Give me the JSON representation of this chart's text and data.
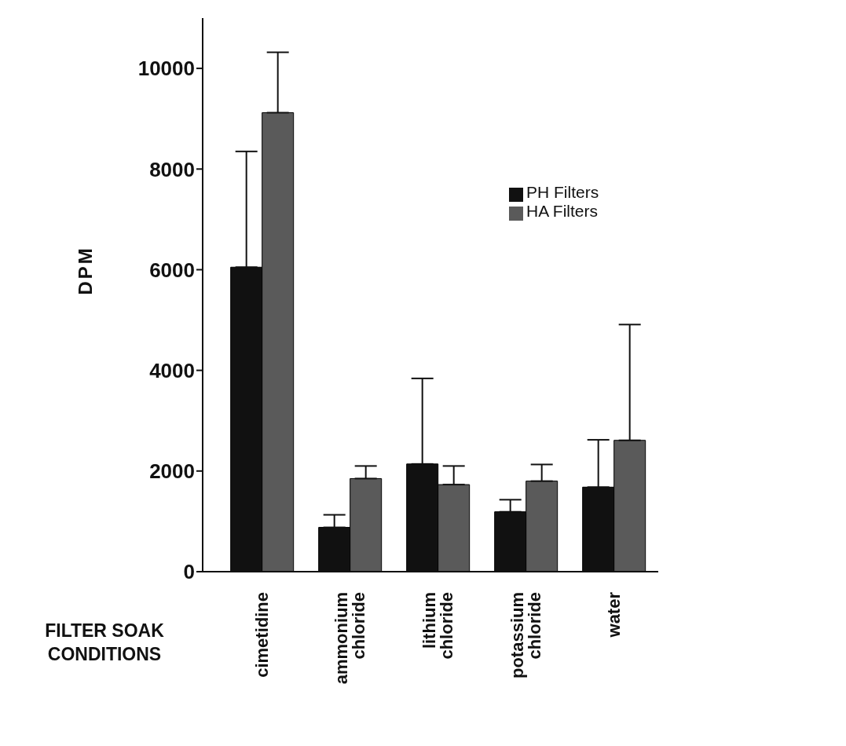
{
  "chart_data": {
    "type": "bar",
    "xlabel": "FILTER SOAK CONDITIONS",
    "ylabel": "DPM",
    "categories": [
      "cimetidine",
      "ammonium chloride",
      "lithium chloride",
      "potassium chloride",
      "water"
    ],
    "series": [
      {
        "name": "PH Filters",
        "color": "#111111",
        "values": [
          6050,
          880,
          2140,
          1190,
          1680
        ],
        "errors": [
          [
            6050,
            8350
          ],
          [
            880,
            1130
          ],
          [
            2140,
            3840
          ],
          [
            1190,
            1430
          ],
          [
            1680,
            2620
          ]
        ]
      },
      {
        "name": "HA Filters",
        "color": "#5a5a5a",
        "values": [
          9120,
          1850,
          1730,
          1800,
          2610
        ],
        "errors": [
          [
            9120,
            10320
          ],
          [
            1850,
            2100
          ],
          [
            1730,
            2100
          ],
          [
            1800,
            2130
          ],
          [
            2610,
            4910
          ]
        ]
      }
    ],
    "ylim": [
      0,
      11000
    ],
    "yticks": [
      0,
      2000,
      4000,
      6000,
      8000,
      10000
    ],
    "grid": false,
    "legend": "top right"
  }
}
